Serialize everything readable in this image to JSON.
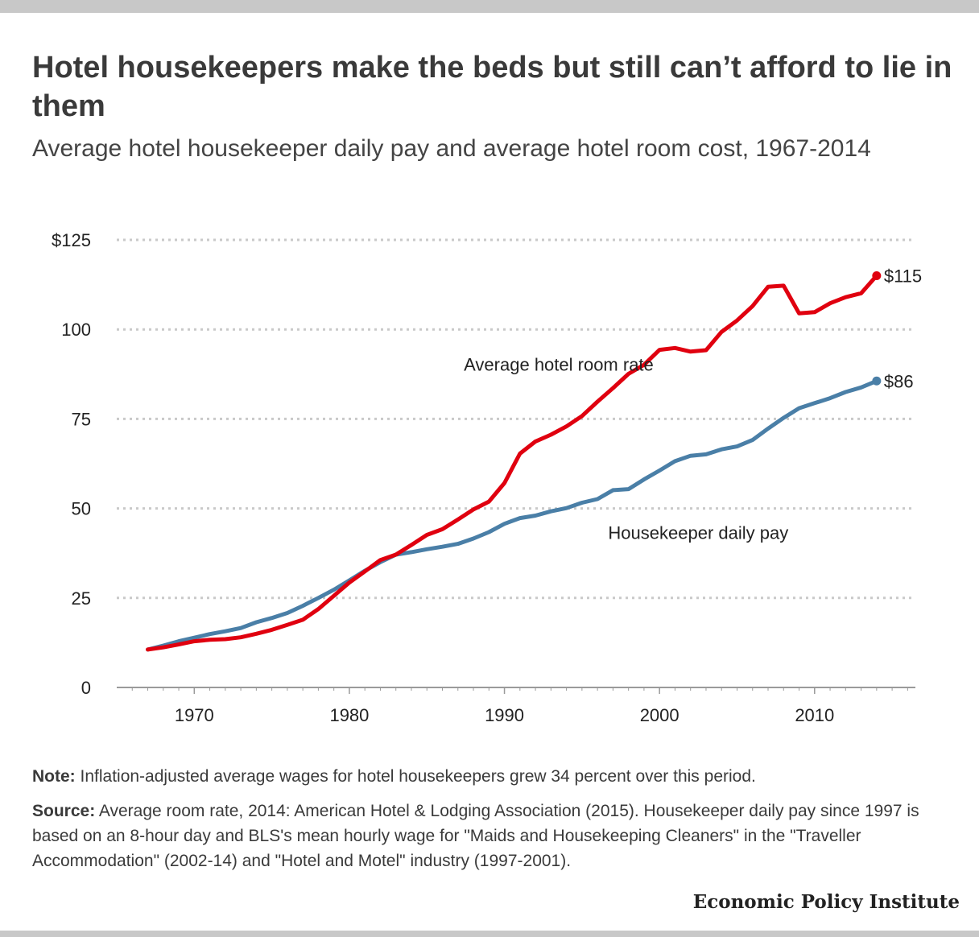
{
  "title": "Hotel housekeepers make the beds but still can’t afford to lie in them",
  "subtitle": "Average hotel housekeeper daily pay and average hotel room cost, 1967-2014",
  "note_label": "Note:",
  "note_text": " Inflation-adjusted average wages for hotel housekeepers grew 34 percent over this period.",
  "source_label": "Source:",
  "source_text": " Average room rate, 2014: American Hotel & Lodging Association (2015). Housekeeper daily pay since 1997 is based on an 8-hour day and BLS's mean hourly wage for \"Maids and Housekeeping Cleaners\" in the \"Traveller Accommodation\" (2002-14) and \"Hotel and Motel\" industry (1997-2001).",
  "brand": "Economic Policy Institute",
  "chart_data": {
    "type": "line",
    "title": "",
    "xlabel": "",
    "ylabel": "",
    "xlim": [
      1965,
      2016.5
    ],
    "ylim": [
      0,
      125
    ],
    "grid": true,
    "x_ticks": [
      1970,
      1980,
      1990,
      2000,
      2010
    ],
    "x_tick_labels": [
      "1970",
      "1980",
      "1990",
      "2000",
      "2010"
    ],
    "y_ticks": [
      0,
      25,
      50,
      75,
      100,
      125
    ],
    "y_tick_labels": [
      "0",
      "25",
      "50",
      "75",
      "100",
      "$125"
    ],
    "x": [
      1967,
      1968,
      1969,
      1970,
      1971,
      1972,
      1973,
      1974,
      1975,
      1976,
      1977,
      1978,
      1979,
      1980,
      1981,
      1982,
      1983,
      1984,
      1985,
      1986,
      1987,
      1988,
      1989,
      1990,
      1991,
      1992,
      1993,
      1994,
      1995,
      1996,
      1997,
      1998,
      1999,
      2000,
      2001,
      2002,
      2003,
      2004,
      2005,
      2006,
      2007,
      2008,
      2009,
      2010,
      2011,
      2012,
      2013,
      2014
    ],
    "series": [
      {
        "name": "Average hotel room rate",
        "color": "#e0000f",
        "end_label": "$115",
        "values": [
          10.6,
          11.2,
          12.0,
          12.9,
          13.3,
          13.5,
          14.0,
          15.0,
          16.1,
          17.5,
          18.9,
          21.9,
          25.6,
          29.3,
          32.4,
          35.6,
          37.1,
          39.8,
          42.6,
          44.2,
          46.9,
          49.7,
          51.9,
          57.1,
          65.3,
          68.7,
          70.6,
          72.9,
          75.8,
          79.8,
          83.6,
          87.6,
          90.1,
          94.3,
          94.8,
          93.8,
          94.2,
          99.3,
          102.5,
          106.5,
          111.9,
          112.2,
          104.5,
          104.8,
          107.3,
          109.0,
          110.1,
          115.0
        ]
      },
      {
        "name": "Housekeeper daily pay",
        "color": "#4a7fa7",
        "end_label": "$86",
        "values": [
          10.6,
          11.7,
          12.9,
          13.9,
          14.9,
          15.7,
          16.6,
          18.2,
          19.4,
          20.8,
          22.8,
          25.0,
          27.3,
          29.9,
          32.6,
          35.0,
          37.1,
          37.8,
          38.6,
          39.3,
          40.1,
          41.6,
          43.4,
          45.7,
          47.3,
          48.0,
          49.2,
          50.1,
          51.6,
          52.6,
          55.1,
          55.4,
          58.1,
          60.6,
          63.2,
          64.7,
          65.1,
          66.5,
          67.3,
          69.1,
          72.3,
          75.3,
          78.0,
          79.4,
          80.8,
          82.5,
          83.8,
          85.6
        ]
      }
    ],
    "annotations": [
      {
        "text": "Average hotel room rate",
        "x": 1993.5,
        "y": 88.5
      },
      {
        "text": "Housekeeper daily pay",
        "x": 2002.5,
        "y": 41.5
      }
    ]
  }
}
